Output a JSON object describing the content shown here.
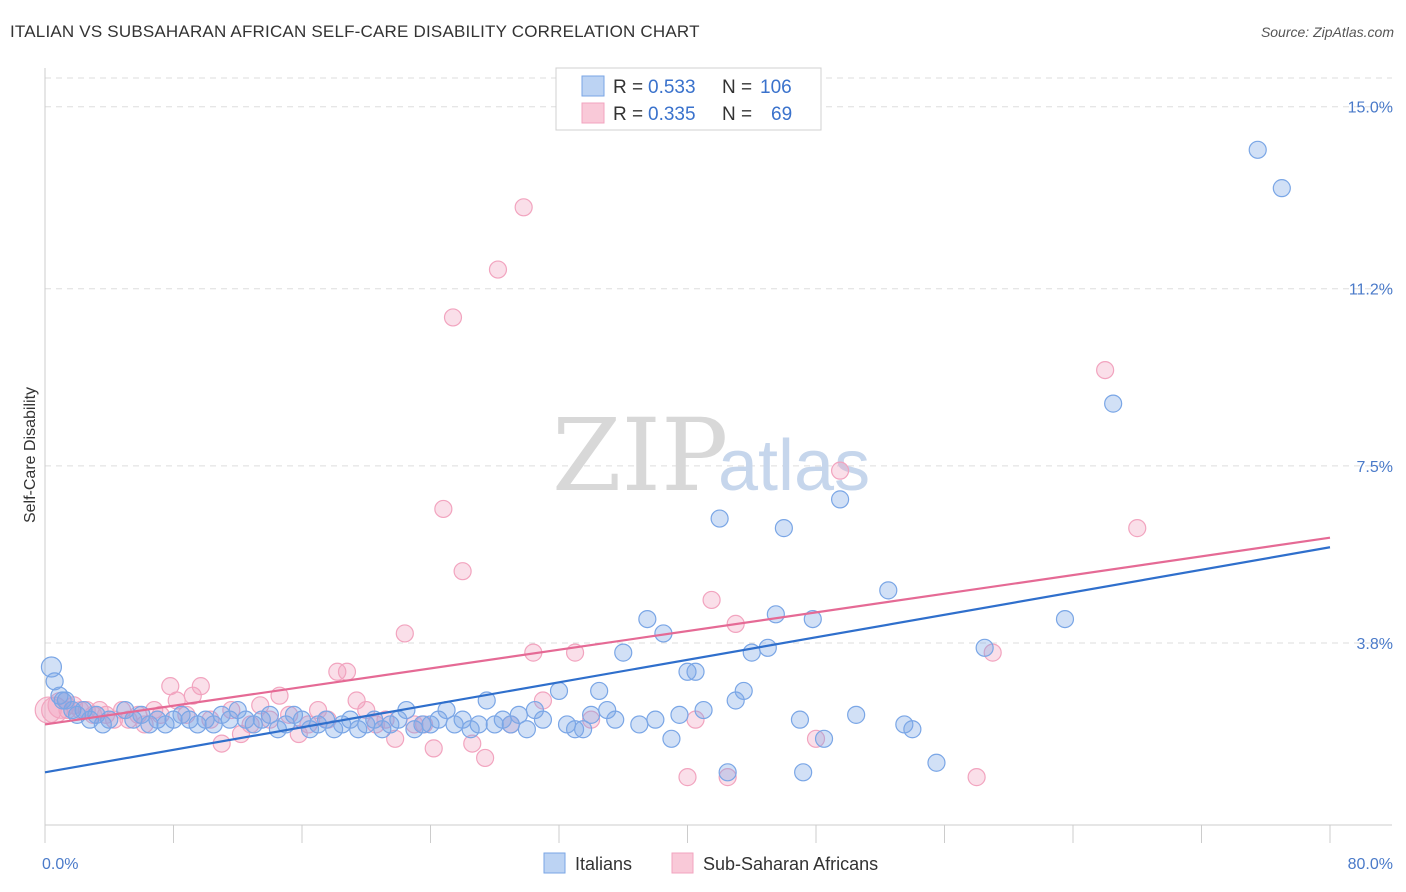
{
  "title": "ITALIAN VS SUBSAHARAN AFRICAN SELF-CARE DISABILITY CORRELATION CHART",
  "source": "Source: ZipAtlas.com",
  "watermark": {
    "zip": "ZIP",
    "atlas": "atlas"
  },
  "colors": {
    "italians": "#7aa6e6",
    "italians_line": "#2f6fcc",
    "subsaharan": "#f2a4bf",
    "subsaharan_line": "#e56a95"
  },
  "legend": {
    "rows": [
      {
        "r_label": "R = ",
        "r_value": "0.533",
        "n_label": "N = ",
        "n_value": "106"
      },
      {
        "r_label": "R = ",
        "r_value": "0.335",
        "n_label": "N = ",
        "n_value": "69"
      }
    ]
  },
  "chart_data": {
    "type": "scatter",
    "title": "ITALIAN VS SUBSAHARAN AFRICAN SELF-CARE DISABILITY CORRELATION CHART",
    "xlabel": "",
    "ylabel": "Self-Care Disability",
    "xlim": [
      0,
      80
    ],
    "ylim": [
      0,
      15.6
    ],
    "x_tick_labels": [
      "0.0%",
      "80.0%"
    ],
    "y_ticks": [
      3.8,
      7.5,
      11.2,
      15.0
    ],
    "y_tick_labels": [
      "3.8%",
      "7.5%",
      "11.2%",
      "15.0%"
    ],
    "grid": true,
    "legend_position": "top-center",
    "series": [
      {
        "name": "Italians",
        "color": "#7aa6e6",
        "trend": {
          "x": [
            0,
            80
          ],
          "y": [
            1.1,
            5.8
          ]
        },
        "points": [
          [
            0.4,
            3.3
          ],
          [
            0.9,
            2.7
          ],
          [
            1.3,
            2.6
          ],
          [
            1.7,
            2.4
          ],
          [
            2.0,
            2.3
          ],
          [
            2.4,
            2.4
          ],
          [
            2.8,
            2.2
          ],
          [
            3.2,
            2.3
          ],
          [
            3.6,
            2.1
          ],
          [
            4.0,
            2.2
          ],
          [
            5.0,
            2.4
          ],
          [
            5.5,
            2.2
          ],
          [
            6.0,
            2.3
          ],
          [
            6.5,
            2.1
          ],
          [
            7.0,
            2.2
          ],
          [
            7.5,
            2.1
          ],
          [
            8.0,
            2.2
          ],
          [
            8.5,
            2.3
          ],
          [
            9.0,
            2.2
          ],
          [
            9.5,
            2.1
          ],
          [
            10.0,
            2.2
          ],
          [
            10.5,
            2.1
          ],
          [
            11.0,
            2.3
          ],
          [
            11.5,
            2.2
          ],
          [
            12.0,
            2.4
          ],
          [
            12.5,
            2.2
          ],
          [
            13.0,
            2.1
          ],
          [
            13.5,
            2.2
          ],
          [
            14.0,
            2.3
          ],
          [
            14.5,
            2.0
          ],
          [
            15.0,
            2.1
          ],
          [
            15.5,
            2.3
          ],
          [
            16.0,
            2.2
          ],
          [
            16.5,
            2.0
          ],
          [
            17.0,
            2.1
          ],
          [
            17.5,
            2.2
          ],
          [
            18.0,
            2.0
          ],
          [
            18.5,
            2.1
          ],
          [
            19.0,
            2.2
          ],
          [
            19.5,
            2.0
          ],
          [
            20.0,
            2.1
          ],
          [
            20.5,
            2.2
          ],
          [
            21.0,
            2.0
          ],
          [
            21.5,
            2.1
          ],
          [
            22.0,
            2.2
          ],
          [
            22.5,
            2.4
          ],
          [
            23.0,
            2.0
          ],
          [
            23.5,
            2.1
          ],
          [
            24.0,
            2.1
          ],
          [
            24.5,
            2.2
          ],
          [
            25.0,
            2.4
          ],
          [
            25.5,
            2.1
          ],
          [
            26.0,
            2.2
          ],
          [
            26.5,
            2.0
          ],
          [
            27.0,
            2.1
          ],
          [
            27.5,
            2.6
          ],
          [
            28.0,
            2.1
          ],
          [
            28.5,
            2.2
          ],
          [
            29.0,
            2.1
          ],
          [
            29.5,
            2.3
          ],
          [
            30.0,
            2.0
          ],
          [
            30.5,
            2.4
          ],
          [
            31.0,
            2.2
          ],
          [
            32.0,
            2.8
          ],
          [
            32.5,
            2.1
          ],
          [
            33.0,
            2.0
          ],
          [
            33.5,
            2.0
          ],
          [
            34.0,
            2.3
          ],
          [
            34.5,
            2.8
          ],
          [
            35.0,
            2.4
          ],
          [
            35.5,
            2.2
          ],
          [
            36.0,
            3.6
          ],
          [
            37.0,
            2.1
          ],
          [
            37.5,
            4.3
          ],
          [
            38.0,
            2.2
          ],
          [
            38.5,
            4.0
          ],
          [
            39.0,
            1.8
          ],
          [
            39.5,
            2.3
          ],
          [
            40.0,
            3.2
          ],
          [
            40.5,
            3.2
          ],
          [
            41.0,
            2.4
          ],
          [
            42.0,
            6.4
          ],
          [
            42.5,
            1.1
          ],
          [
            43.0,
            2.6
          ],
          [
            43.5,
            2.8
          ],
          [
            44.0,
            3.6
          ],
          [
            45.0,
            3.7
          ],
          [
            45.5,
            4.4
          ],
          [
            46.0,
            6.2
          ],
          [
            47.0,
            2.2
          ],
          [
            47.2,
            1.1
          ],
          [
            47.8,
            4.3
          ],
          [
            48.5,
            1.8
          ],
          [
            49.5,
            6.8
          ],
          [
            50.5,
            2.3
          ],
          [
            52.5,
            4.9
          ],
          [
            53.5,
            2.1
          ],
          [
            54.0,
            2.0
          ],
          [
            55.5,
            1.3
          ],
          [
            58.5,
            3.7
          ],
          [
            63.5,
            4.3
          ],
          [
            66.5,
            8.8
          ],
          [
            75.5,
            14.1
          ],
          [
            77.0,
            13.3
          ],
          [
            0.6,
            3.0
          ],
          [
            1.1,
            2.6
          ]
        ]
      },
      {
        "name": "Sub-Saharan Africans",
        "color": "#f2a4bf",
        "trend": {
          "x": [
            0,
            80
          ],
          "y": [
            2.1,
            6.0
          ]
        },
        "points": [
          [
            0.2,
            2.4
          ],
          [
            0.6,
            2.4
          ],
          [
            1.0,
            2.5
          ],
          [
            1.4,
            2.4
          ],
          [
            1.8,
            2.5
          ],
          [
            2.2,
            2.4
          ],
          [
            2.6,
            2.4
          ],
          [
            3.0,
            2.3
          ],
          [
            3.4,
            2.4
          ],
          [
            3.8,
            2.3
          ],
          [
            4.3,
            2.2
          ],
          [
            4.8,
            2.4
          ],
          [
            5.2,
            2.2
          ],
          [
            5.8,
            2.3
          ],
          [
            6.2,
            2.1
          ],
          [
            6.8,
            2.4
          ],
          [
            7.2,
            2.3
          ],
          [
            7.8,
            2.9
          ],
          [
            8.2,
            2.6
          ],
          [
            8.8,
            2.3
          ],
          [
            9.2,
            2.7
          ],
          [
            9.7,
            2.9
          ],
          [
            10.3,
            2.2
          ],
          [
            11.0,
            1.7
          ],
          [
            11.6,
            2.4
          ],
          [
            12.2,
            1.9
          ],
          [
            12.8,
            2.1
          ],
          [
            13.4,
            2.5
          ],
          [
            14.0,
            2.2
          ],
          [
            14.6,
            2.7
          ],
          [
            15.2,
            2.3
          ],
          [
            15.8,
            1.9
          ],
          [
            16.4,
            2.1
          ],
          [
            17.0,
            2.4
          ],
          [
            17.6,
            2.2
          ],
          [
            18.2,
            3.2
          ],
          [
            18.8,
            3.2
          ],
          [
            19.4,
            2.6
          ],
          [
            20.0,
            2.4
          ],
          [
            20.6,
            2.1
          ],
          [
            21.2,
            2.2
          ],
          [
            21.8,
            1.8
          ],
          [
            22.4,
            4.0
          ],
          [
            23.0,
            2.1
          ],
          [
            23.6,
            2.1
          ],
          [
            24.2,
            1.6
          ],
          [
            24.8,
            6.6
          ],
          [
            25.4,
            10.6
          ],
          [
            26.0,
            5.3
          ],
          [
            26.6,
            1.7
          ],
          [
            27.4,
            1.4
          ],
          [
            28.2,
            11.6
          ],
          [
            29.0,
            2.1
          ],
          [
            29.8,
            12.9
          ],
          [
            30.4,
            3.6
          ],
          [
            31.0,
            2.6
          ],
          [
            33.0,
            3.6
          ],
          [
            34.0,
            2.2
          ],
          [
            40.0,
            1.0
          ],
          [
            40.5,
            2.2
          ],
          [
            41.5,
            4.7
          ],
          [
            42.5,
            1.0
          ],
          [
            43.0,
            4.2
          ],
          [
            48.0,
            1.8
          ],
          [
            49.5,
            7.4
          ],
          [
            58.0,
            1.0
          ],
          [
            59.0,
            3.6
          ],
          [
            66.0,
            9.5
          ],
          [
            68.0,
            6.2
          ]
        ]
      }
    ]
  },
  "bottom_legend": {
    "italians": "Italians",
    "subsaharan": "Sub-Saharan Africans"
  }
}
